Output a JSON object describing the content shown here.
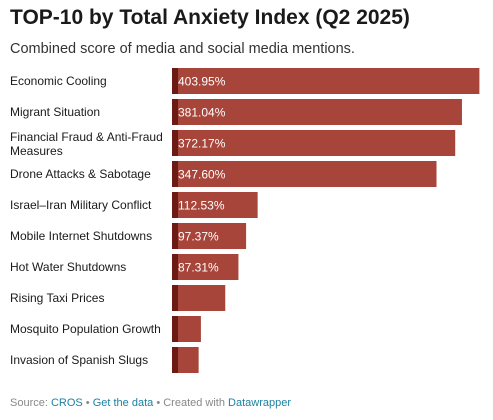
{
  "header": {
    "title": "TOP-10 by Total Anxiety Index (Q2 2025)",
    "subtitle": "Combined score of media and social media mentions."
  },
  "footer": {
    "source_prefix": "Source: ",
    "source_link": "CROS",
    "sep1": " • ",
    "data_link": "Get the data",
    "sep2": " • Created with ",
    "tool_link": "Datawrapper"
  },
  "colors": {
    "bar": "#a8453a",
    "bar_dark": "#6b1a14",
    "label_text": "#ffffff",
    "category_text": "#1a1a1a"
  },
  "chart_data": {
    "type": "bar",
    "orientation": "horizontal",
    "categories": [
      "Economic Cooling",
      "Migrant Situation",
      "Financial Fraud & Anti-Fraud Measures",
      "Drone Attacks & Sabotage",
      "Israel–Iran Military Conflict",
      "Mobile Internet Shutdowns",
      "Hot Water Shutdowns",
      "Rising Taxi Prices",
      "Mosquito Population Growth",
      "Invasion of Spanish Slugs"
    ],
    "category_lines": [
      [
        "Economic Cooling"
      ],
      [
        "Migrant Situation"
      ],
      [
        "Financial Fraud & Anti-Fraud",
        "Measures"
      ],
      [
        "Drone Attacks & Sabotage"
      ],
      [
        "Israel–Iran Military Conflict"
      ],
      [
        "Mobile Internet Shutdowns"
      ],
      [
        "Hot Water Shutdowns"
      ],
      [
        "Rising Taxi Prices"
      ],
      [
        "Mosquito Population Growth"
      ],
      [
        "Invasion of Spanish Slugs"
      ]
    ],
    "values": [
      403.95,
      381.04,
      372.17,
      347.6,
      112.53,
      97.37,
      87.31,
      70,
      38,
      35
    ],
    "value_labels": [
      "403.95%",
      "381.04%",
      "372.17%",
      "347.60%",
      "112.53%",
      "97.37%",
      "87.31%",
      "",
      "",
      ""
    ],
    "xlim": [
      0,
      410
    ],
    "grid": false,
    "legend": "none"
  }
}
